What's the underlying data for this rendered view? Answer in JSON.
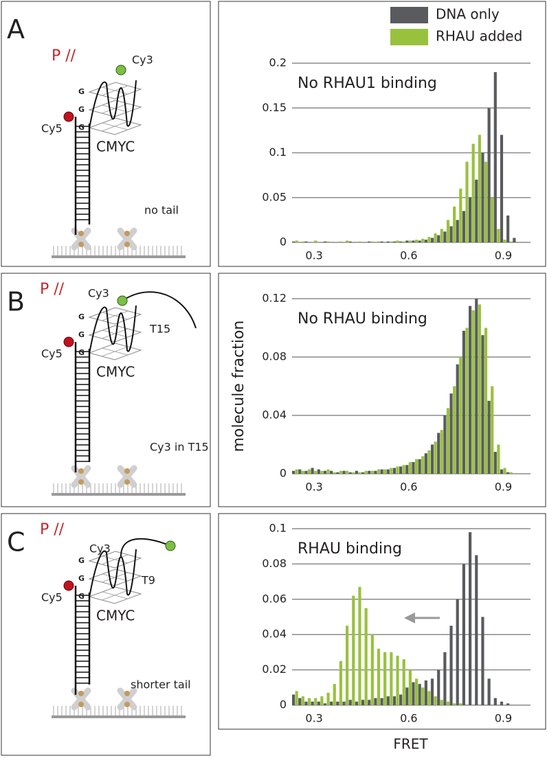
{
  "panels": [
    {
      "letter": "A",
      "label": "P //",
      "cy3": "Cy3",
      "cy5": "Cy5",
      "g": [
        "G",
        "G",
        "G"
      ],
      "dna": "CMYC",
      "note": "no tail"
    },
    {
      "letter": "B",
      "label": "P //",
      "cy3": "Cy3",
      "cy5": "Cy5",
      "g": [
        "G",
        "G",
        "G"
      ],
      "dna": "CMYC",
      "tail": "T15",
      "note": "Cy3 in T15"
    },
    {
      "letter": "C",
      "label": "P //",
      "cy3": "Cy3",
      "cy5": "Cy5",
      "g": [
        "G",
        "G",
        "G"
      ],
      "dna": "CMYC",
      "tail": "T9",
      "note": "shorter tail"
    }
  ],
  "chart_data": [
    {
      "type": "histogram",
      "title": "No RHAU1 binding",
      "legend": "upper right",
      "grid": true,
      "bins": [
        0.23,
        0.25,
        0.27,
        0.29,
        0.31,
        0.33,
        0.35,
        0.37,
        0.39,
        0.41,
        0.43,
        0.45,
        0.47,
        0.49,
        0.51,
        0.53,
        0.55,
        0.57,
        0.59,
        0.61,
        0.63,
        0.65,
        0.67,
        0.69,
        0.71,
        0.73,
        0.75,
        0.77,
        0.79,
        0.81,
        0.83,
        0.85,
        0.87,
        0.89,
        0.91,
        0.93,
        0.95
      ],
      "series": [
        {
          "name": "DNA only",
          "color": "#5a5b5f",
          "values": [
            0.001,
            0,
            0.001,
            0,
            0,
            0.001,
            0,
            0,
            0,
            0.001,
            0,
            0,
            0.001,
            0,
            0.001,
            0.001,
            0.001,
            0.001,
            0.002,
            0.002,
            0.002,
            0.003,
            0.005,
            0.008,
            0.012,
            0.018,
            0.025,
            0.035,
            0.05,
            0.07,
            0.1,
            0.15,
            0.19,
            0.12,
            0.03,
            0.005
          ]
        },
        {
          "name": "RHAU added",
          "color": "#98c23d",
          "values": [
            0.002,
            0.001,
            0,
            0.002,
            0,
            0.001,
            0,
            0.001,
            0.002,
            0,
            0.001,
            0,
            0.001,
            0.001,
            0,
            0.001,
            0.002,
            0.001,
            0.002,
            0.003,
            0.004,
            0.006,
            0.01,
            0.015,
            0.025,
            0.04,
            0.06,
            0.09,
            0.11,
            0.12,
            0.09,
            0.05,
            0.015,
            0.003,
            0.001,
            0
          ]
        }
      ],
      "xlim": [
        0.23,
        0.96
      ],
      "ylim": [
        0,
        0.2
      ],
      "xticks": [
        0.3,
        0.6,
        0.9
      ],
      "yticks": [
        0,
        0.05,
        0.1,
        0.15,
        0.2
      ]
    },
    {
      "type": "histogram",
      "title": "No RHAU binding",
      "ylabel": "molecule fraction",
      "grid": true,
      "bins": [
        0.23,
        0.25,
        0.27,
        0.29,
        0.31,
        0.33,
        0.35,
        0.37,
        0.39,
        0.41,
        0.43,
        0.45,
        0.47,
        0.49,
        0.51,
        0.53,
        0.55,
        0.57,
        0.59,
        0.61,
        0.63,
        0.65,
        0.67,
        0.69,
        0.71,
        0.73,
        0.75,
        0.77,
        0.79,
        0.81,
        0.83,
        0.85,
        0.87,
        0.89,
        0.91,
        0.93,
        0.95
      ],
      "series": [
        {
          "color": "#5a5b5f",
          "values": [
            0.002,
            0.003,
            0.002,
            0.004,
            0.003,
            0.002,
            0.002,
            0.001,
            0.002,
            0.001,
            0.002,
            0.001,
            0.002,
            0.002,
            0.003,
            0.003,
            0.004,
            0.005,
            0.006,
            0.008,
            0.01,
            0.014,
            0.02,
            0.028,
            0.04,
            0.055,
            0.075,
            0.098,
            0.115,
            0.12,
            0.095,
            0.05,
            0.015,
            0.003,
            0.001,
            0
          ]
        },
        {
          "color": "#98c23d",
          "values": [
            0.003,
            0.002,
            0.003,
            0.002,
            0.002,
            0.003,
            0.001,
            0.002,
            0.002,
            0.001,
            0.001,
            0.002,
            0.002,
            0.003,
            0.003,
            0.004,
            0.005,
            0.006,
            0.008,
            0.01,
            0.012,
            0.016,
            0.022,
            0.03,
            0.045,
            0.06,
            0.08,
            0.1,
            0.112,
            0.116,
            0.1,
            0.06,
            0.02,
            0.004,
            0.001,
            0
          ]
        }
      ],
      "xlim": [
        0.23,
        0.96
      ],
      "ylim": [
        0,
        0.12
      ],
      "xticks": [
        0.3,
        0.6,
        0.9
      ],
      "yticks": [
        0,
        0.04,
        0.08,
        0.12
      ]
    },
    {
      "type": "histogram",
      "title": "RHAU binding",
      "xlabel": "FRET",
      "grid": true,
      "bins": [
        0.23,
        0.25,
        0.27,
        0.29,
        0.31,
        0.33,
        0.35,
        0.37,
        0.39,
        0.41,
        0.43,
        0.45,
        0.47,
        0.49,
        0.51,
        0.53,
        0.55,
        0.57,
        0.59,
        0.61,
        0.63,
        0.65,
        0.67,
        0.69,
        0.71,
        0.73,
        0.75,
        0.77,
        0.79,
        0.81,
        0.83,
        0.85,
        0.87,
        0.89,
        0.91,
        0.93,
        0.95
      ],
      "series": [
        {
          "color": "#5a5b5f",
          "values": [
            0.006,
            0.004,
            0.002,
            0.002,
            0.002,
            0.001,
            0.002,
            0.002,
            0.002,
            0.003,
            0.002,
            0.003,
            0.003,
            0.004,
            0.004,
            0.005,
            0.005,
            0.006,
            0.01,
            0.013,
            0.012,
            0.014,
            0.015,
            0.02,
            0.03,
            0.045,
            0.06,
            0.08,
            0.098,
            0.085,
            0.05,
            0.015,
            0.004,
            0.002,
            0.001,
            0
          ]
        },
        {
          "color": "#98c23d",
          "values": [
            0.008,
            0.005,
            0.004,
            0.004,
            0.005,
            0.007,
            0.012,
            0.025,
            0.045,
            0.062,
            0.067,
            0.055,
            0.04,
            0.032,
            0.03,
            0.03,
            0.028,
            0.026,
            0.02,
            0.015,
            0.01,
            0.008,
            0.005,
            0.003,
            0.002,
            0.001,
            0.001,
            0,
            0,
            0,
            0,
            0,
            0,
            0,
            0,
            0
          ]
        }
      ],
      "xlim": [
        0.23,
        0.96
      ],
      "ylim": [
        0,
        0.1
      ],
      "xticks": [
        0.3,
        0.6,
        0.9
      ],
      "yticks": [
        0,
        0.02,
        0.04,
        0.06,
        0.08,
        0.1
      ]
    }
  ]
}
